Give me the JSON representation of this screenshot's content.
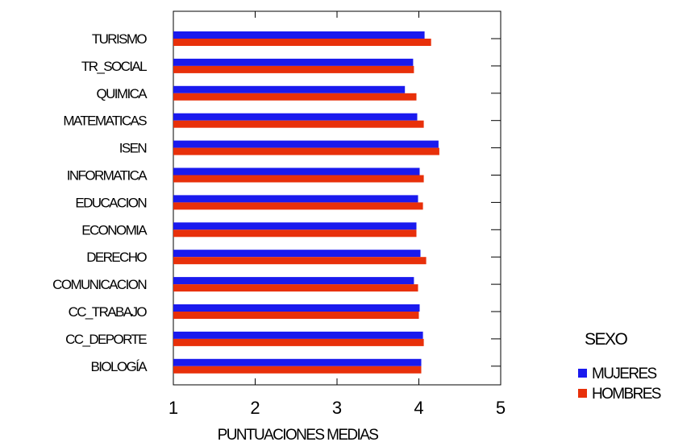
{
  "chart_data": {
    "type": "bar",
    "orientation": "horizontal",
    "categories": [
      "TURISMO",
      "TR_SOCIAL",
      "QUIMICA",
      "MATEMATICAS",
      "ISEN",
      "INFORMATICA",
      "EDUCACION",
      "ECONOMIA",
      "DERECHO",
      "COMUNICACION",
      "CC_TRABAJO",
      "CC_DEPORTE",
      "BIOLOGÍA"
    ],
    "series": [
      {
        "name": "MUJERES",
        "color": "#1a1aee",
        "values": [
          4.07,
          3.93,
          3.83,
          3.98,
          4.24,
          4.01,
          3.99,
          3.97,
          4.02,
          3.94,
          4.01,
          4.05,
          4.03
        ]
      },
      {
        "name": "HOMBRES",
        "color": "#e8300a",
        "values": [
          4.15,
          3.94,
          3.97,
          4.06,
          4.25,
          4.06,
          4.05,
          3.97,
          4.09,
          3.99,
          4.0,
          4.06,
          4.03
        ]
      }
    ],
    "xlabel": "PUNTUACIONES MEDIAS",
    "xlim": [
      1,
      5
    ],
    "xticks": [
      "1",
      "2",
      "3",
      "4",
      "5"
    ],
    "legend_title": "SEXO",
    "legend_position": "right",
    "grid": false
  }
}
